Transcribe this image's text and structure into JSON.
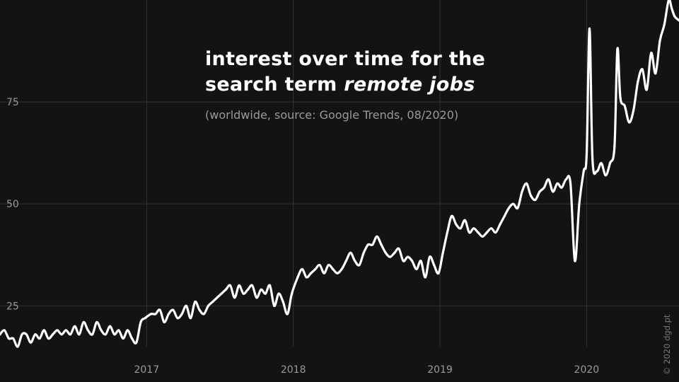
{
  "title": {
    "line1": "interest over time for the",
    "line2_prefix": "search term ",
    "line2_emphasis": "remote jobs"
  },
  "subtitle": "(worldwide, source: Google Trends, 08/2020)",
  "credit": "© 2020 dgd.pt",
  "colors": {
    "background": "#131313",
    "line": "#ffffff",
    "grid": "#333333",
    "tick_text": "#9a9a9a"
  },
  "chart_data": {
    "type": "line",
    "x_unit": "year (decimal)",
    "xlim": [
      2016.0,
      2020.63
    ],
    "ylim": [
      15,
      100
    ],
    "yticks": [
      25,
      50,
      75
    ],
    "ytick_labels": [
      "25",
      "50",
      "75"
    ],
    "xticks": [
      2017,
      2018,
      2019,
      2020
    ],
    "xtick_labels": [
      "2017",
      "2018",
      "2019",
      "2020"
    ],
    "grid": true,
    "series": [
      {
        "x": [
          2016.0,
          2016.03,
          2016.06,
          2016.09,
          2016.12,
          2016.15,
          2016.18,
          2016.21,
          2016.24,
          2016.27,
          2016.3,
          2016.33,
          2016.36,
          2016.39,
          2016.42,
          2016.45,
          2016.48,
          2016.51,
          2016.54,
          2016.57,
          2016.6,
          2016.63,
          2016.66,
          2016.69,
          2016.72,
          2016.75,
          2016.78,
          2016.81,
          2016.84,
          2016.87,
          2016.9,
          2016.93,
          2016.96,
          2016.99,
          2017.03,
          2017.06,
          2017.09,
          2017.12,
          2017.15,
          2017.18,
          2017.21,
          2017.24,
          2017.27,
          2017.3,
          2017.33,
          2017.36,
          2017.39,
          2017.42,
          2017.45,
          2017.48,
          2017.51,
          2017.54,
          2017.57,
          2017.6,
          2017.63,
          2017.66,
          2017.69,
          2017.72,
          2017.75,
          2017.78,
          2017.81,
          2017.84,
          2017.87,
          2017.9,
          2017.93,
          2017.96,
          2017.99,
          2018.03,
          2018.06,
          2018.09,
          2018.12,
          2018.15,
          2018.18,
          2018.21,
          2018.24,
          2018.27,
          2018.3,
          2018.33,
          2018.36,
          2018.39,
          2018.42,
          2018.45,
          2018.48,
          2018.51,
          2018.54,
          2018.57,
          2018.6,
          2018.63,
          2018.66,
          2018.69,
          2018.72,
          2018.75,
          2018.78,
          2018.81,
          2018.84,
          2018.87,
          2018.9,
          2018.93,
          2018.96,
          2018.99,
          2019.02,
          2019.05,
          2019.08,
          2019.11,
          2019.14,
          2019.17,
          2019.2,
          2019.23,
          2019.26,
          2019.29,
          2019.32,
          2019.35,
          2019.38,
          2019.41,
          2019.44,
          2019.47,
          2019.5,
          2019.53,
          2019.56,
          2019.59,
          2019.62,
          2019.65,
          2019.68,
          2019.71,
          2019.74,
          2019.77,
          2019.8,
          2019.83,
          2019.86,
          2019.89,
          2019.92,
          2019.95,
          2019.98,
          2020.0,
          2020.02,
          2020.04,
          2020.07,
          2020.1,
          2020.13,
          2020.16,
          2020.19,
          2020.21,
          2020.23,
          2020.26,
          2020.29,
          2020.32,
          2020.35,
          2020.38,
          2020.41,
          2020.44,
          2020.47,
          2020.5,
          2020.53,
          2020.56,
          2020.58,
          2020.6,
          2020.63
        ],
        "values": [
          18,
          19,
          17,
          17,
          15,
          18,
          18,
          16,
          18,
          17,
          19,
          17,
          18,
          19,
          18,
          19,
          18,
          20,
          18,
          21,
          19,
          18,
          21,
          19,
          18,
          20,
          18,
          19,
          17,
          19,
          17,
          16,
          21,
          22,
          23,
          23,
          24,
          21,
          23,
          24,
          22,
          23,
          25,
          22,
          26,
          24,
          23,
          25,
          26,
          27,
          28,
          29,
          30,
          27,
          30,
          28,
          29,
          30,
          27,
          29,
          28,
          30,
          25,
          28,
          26,
          23,
          28,
          32,
          34,
          32,
          33,
          34,
          35,
          33,
          35,
          34,
          33,
          34,
          36,
          38,
          36,
          35,
          38,
          40,
          40,
          42,
          40,
          38,
          37,
          38,
          39,
          36,
          37,
          36,
          34,
          36,
          32,
          37,
          35,
          33,
          38,
          43,
          47,
          45,
          44,
          46,
          43,
          44,
          43,
          42,
          43,
          44,
          43,
          45,
          47,
          49,
          50,
          49,
          53,
          55,
          52,
          51,
          53,
          54,
          56,
          53,
          55,
          54,
          56,
          55,
          36,
          50,
          58,
          62,
          93,
          61,
          58,
          60,
          57,
          60,
          64,
          88,
          76,
          74,
          70,
          73,
          80,
          83,
          78,
          87,
          82,
          90,
          94,
          100,
          98,
          96,
          95
        ]
      }
    ]
  }
}
